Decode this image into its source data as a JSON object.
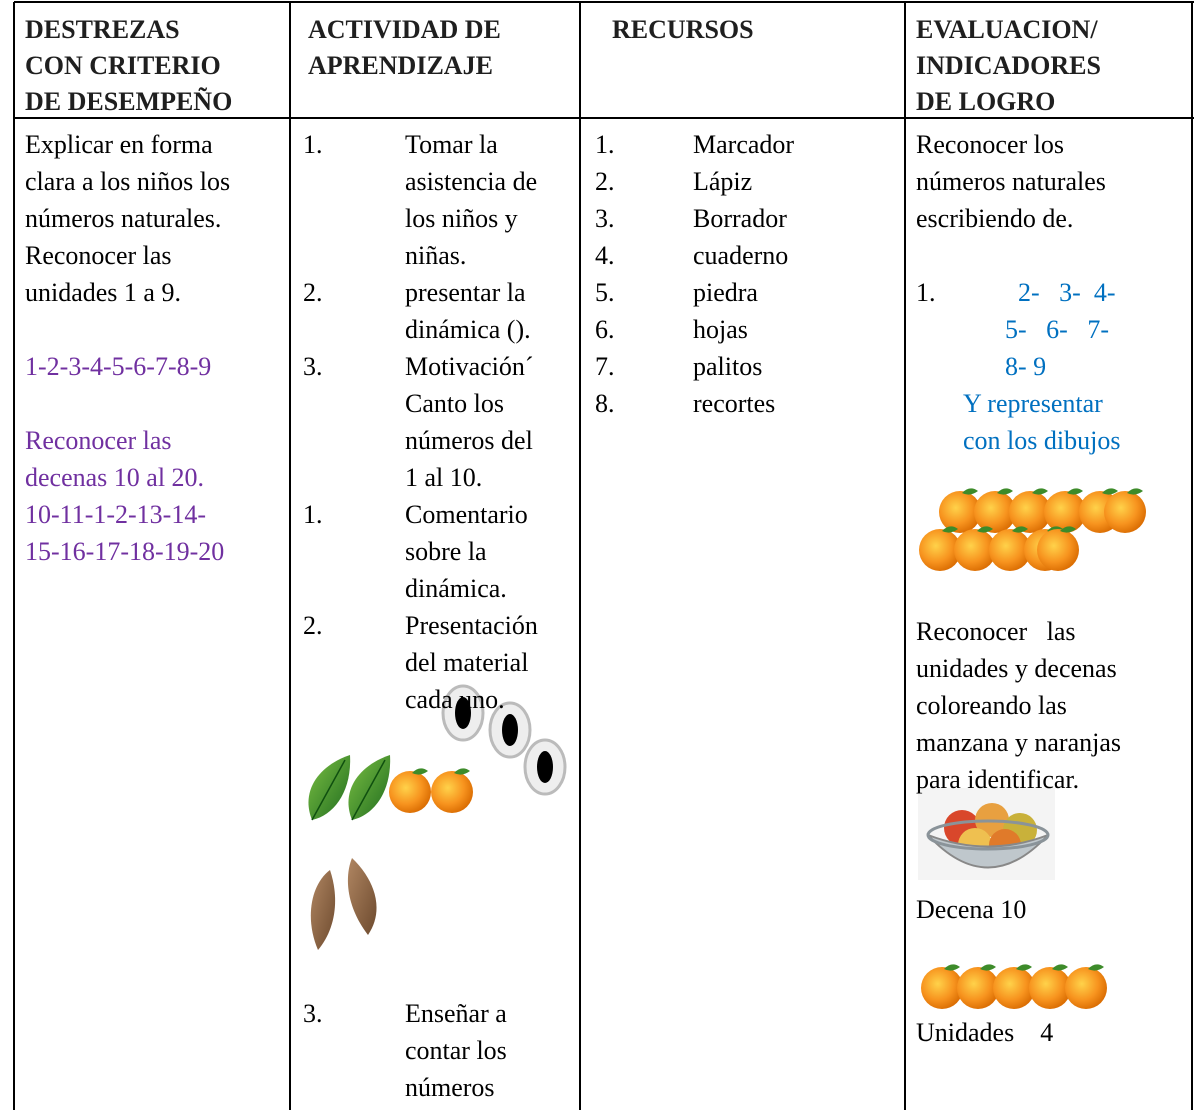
{
  "header": [
    [
      "DESTREZAS",
      "CON CRITERIO",
      "DE DESEMPEÑO"
    ],
    [
      "ACTIVIDAD DE",
      "APRENDIZAJE"
    ],
    [
      "RECURSOS"
    ],
    [
      "EVALUACION/",
      "INDICADORES",
      "DE LOGRO"
    ]
  ],
  "skills": [
    [
      "Explicar en forma",
      "clara a los niños los",
      "números naturales.",
      "Reconocer las",
      "unidades 1 a 9."
    ],
    [
      "1-2-3-4-5-6-7-8-9"
    ],
    [
      "Reconocer las",
      "decenas 10 al 20.",
      "10-11-1-2-13-14-",
      "15-16-17-18-19-20"
    ]
  ],
  "activities": [
    {
      "number": "1.",
      "lines": [
        "Tomar la",
        "asistencia de",
        "los niños y",
        "niñas."
      ]
    },
    {
      "number": "2.",
      "lines": [
        "presentar la",
        "dinámica ()."
      ]
    },
    {
      "number": "3.",
      "lines": [
        "Motivación´",
        "Canto los",
        "números del",
        "1 al 10."
      ]
    },
    {
      "number": "1.",
      "lines": [
        "Comentario",
        "sobre la",
        "dinámica."
      ]
    },
    {
      "number": "2.",
      "lines": [
        "Presentación",
        "del material",
        "cada uno."
      ]
    },
    {
      "number": "3.",
      "lines": [
        "Enseñar a",
        "contar los",
        "números"
      ]
    }
  ],
  "resources": [
    {
      "number": "1.",
      "text": "Marcador"
    },
    {
      "number": "2.",
      "text": "Lápiz"
    },
    {
      "number": "3.",
      "text": "Borrador"
    },
    {
      "number": "4.",
      "text": "cuaderno"
    },
    {
      "number": "5.",
      "text": "piedra"
    },
    {
      "number": "6.",
      "text": "hojas"
    },
    {
      "number": "7.",
      "text": "palitos"
    },
    {
      "number": "8.",
      "text": "recortes"
    }
  ],
  "evaluation": {
    "intro": [
      "Reconocer los",
      "números naturales",
      "escribiendo de."
    ],
    "item_number": "1.",
    "item_lines": [
      "2-   3-  4-",
      "5-   6-   7-",
      "8- 9",
      "Y representar",
      "con los dibujos"
    ],
    "task": [
      "Reconocer   las",
      "unidades y decenas",
      "coloreando las",
      "manzana y naranjas",
      "para identificar."
    ],
    "decena": "Decena 10",
    "unidades": "Unidades    4"
  }
}
